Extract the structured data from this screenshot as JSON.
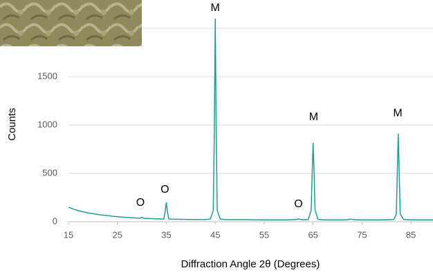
{
  "chart_data": {
    "type": "line",
    "x_label": "Diffraction Angle 2θ (Degrees)",
    "y_label": "Counts",
    "xlim": [
      15,
      89.5
    ],
    "xticks": [
      15,
      25,
      35,
      45,
      55,
      65,
      75,
      85
    ],
    "ylim": [
      0,
      2000
    ],
    "yticks": [
      0,
      500,
      1000,
      1500
    ],
    "grid": true,
    "series": [
      {
        "color": "#1f9c8e",
        "x": [
          15,
          16,
          17,
          18,
          19,
          20,
          21,
          22,
          23,
          24,
          25,
          26,
          27,
          28,
          29,
          29.5,
          30,
          30.5,
          31,
          32,
          33,
          34,
          34.5,
          34.8,
          35,
          35.2,
          35.5,
          36,
          37,
          38,
          39,
          40,
          41,
          42,
          43,
          44,
          44.6,
          44.8,
          45,
          45.2,
          45.4,
          46,
          47,
          48,
          50,
          52,
          54,
          56,
          58,
          60,
          61.5,
          62,
          62.5,
          63,
          64,
          64.6,
          64.8,
          65,
          65.2,
          65.4,
          66,
          67,
          68,
          70,
          72,
          72.5,
          73,
          74,
          76,
          78,
          80,
          81.5,
          82,
          82.2,
          82.4,
          82.6,
          82.8,
          83.5,
          85,
          87,
          89.5
        ],
        "values": [
          150,
          131,
          115,
          102,
          91,
          84,
          75,
          69,
          63,
          57,
          52,
          48,
          44,
          41,
          38,
          36,
          45,
          35,
          34,
          32,
          30,
          29,
          30,
          120,
          200,
          110,
          30,
          27,
          26,
          25,
          24,
          23,
          23,
          22,
          23,
          28,
          120,
          900,
          2100,
          900,
          120,
          28,
          22,
          21,
          21,
          21,
          20,
          20,
          20,
          20,
          22,
          30,
          22,
          20,
          23,
          120,
          500,
          815,
          500,
          120,
          25,
          20,
          20,
          20,
          20,
          28,
          24,
          20,
          20,
          20,
          20,
          23,
          80,
          500,
          910,
          500,
          80,
          23,
          20,
          20,
          20
        ]
      }
    ],
    "annotations": [
      {
        "text": "O",
        "x": 29.7,
        "y": 193
      },
      {
        "text": "O",
        "x": 34.7,
        "y": 329
      },
      {
        "text": "M",
        "x": 45,
        "y": 2207
      },
      {
        "text": "O",
        "x": 62,
        "y": 179
      },
      {
        "text": "M",
        "x": 65.1,
        "y": 1079
      },
      {
        "text": "M",
        "x": 82.3,
        "y": 1121
      }
    ]
  }
}
